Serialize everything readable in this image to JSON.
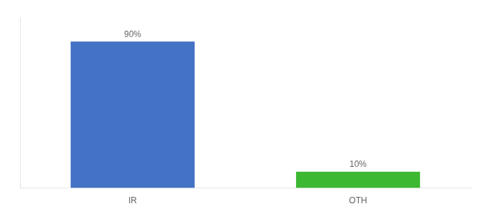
{
  "chart_data": {
    "type": "bar",
    "categories": [
      "IR",
      "OTH"
    ],
    "values": [
      90,
      10
    ],
    "value_labels": [
      "90%",
      "10%"
    ],
    "colors": [
      "#4472c4",
      "#3cb832"
    ],
    "ylim": [
      0,
      105
    ],
    "grid": false,
    "tick_labels": "x",
    "data_labels": true
  }
}
